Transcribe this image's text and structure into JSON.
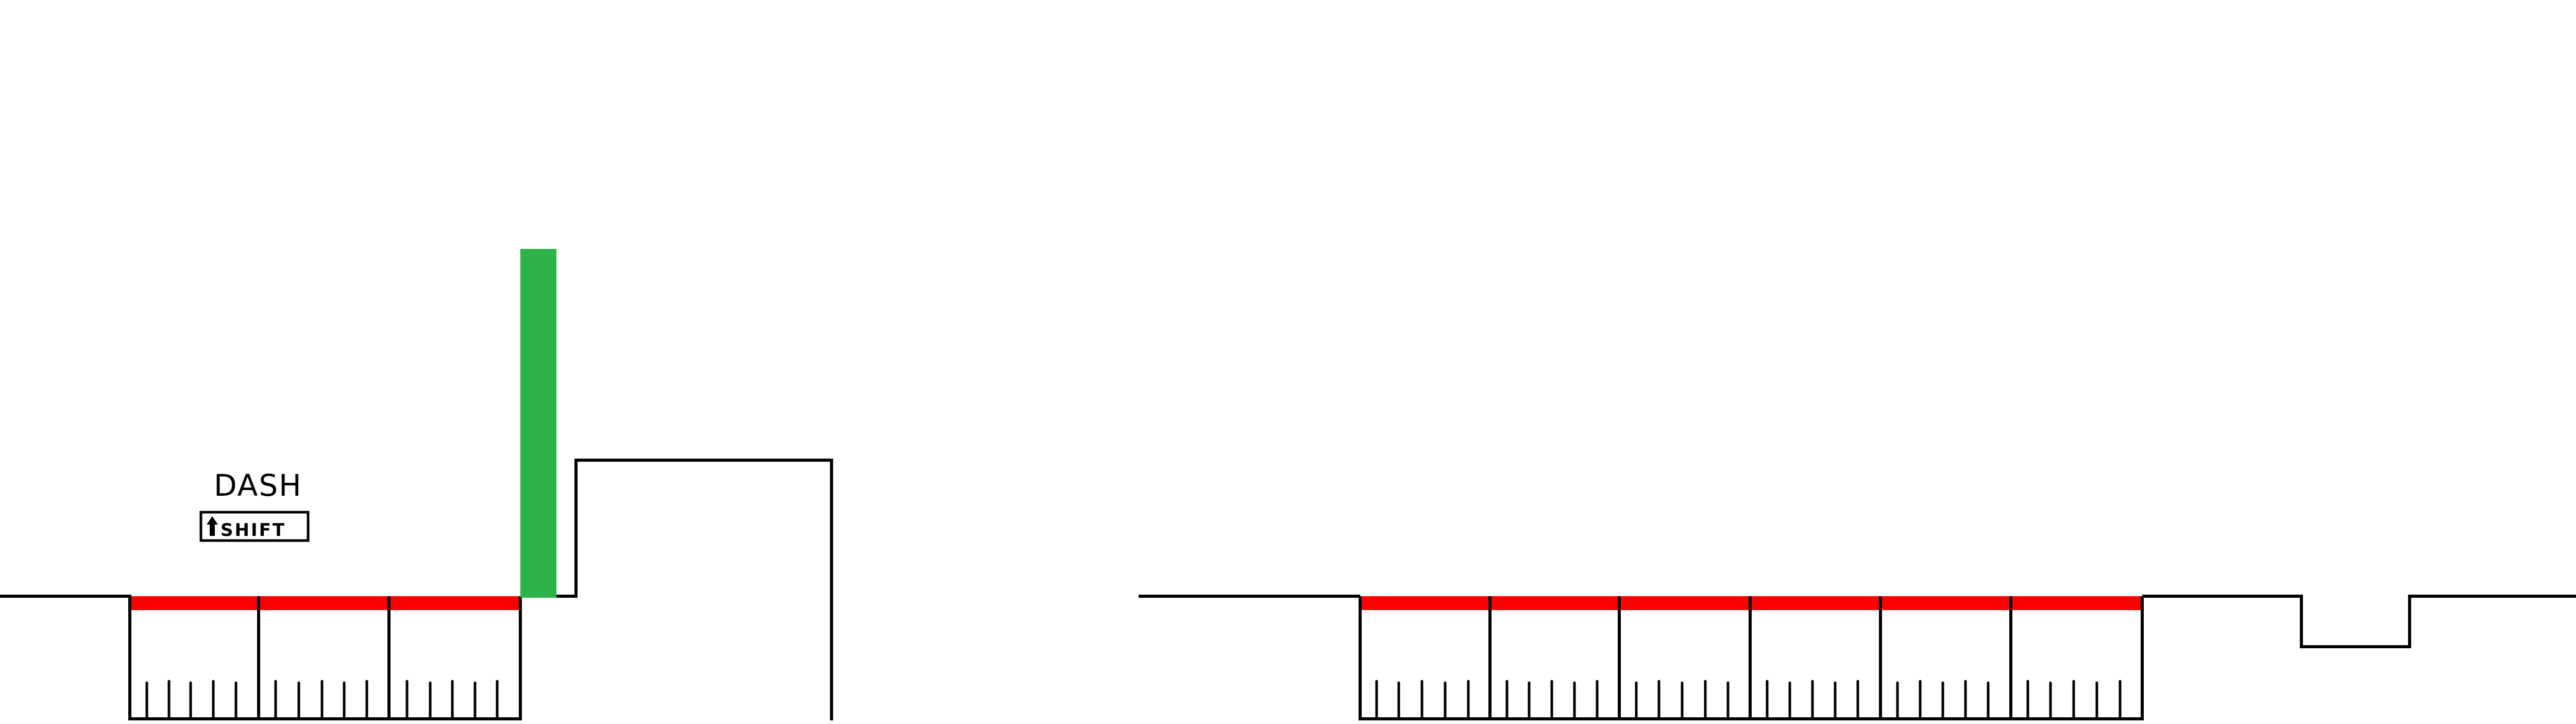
{
  "tutorial": {
    "action_label": "DASH",
    "key_label": "SHIFT",
    "key_icon": "shift-arrow-icon"
  },
  "colors": {
    "background": "#ffffff",
    "ink": "#000000",
    "hazard": "#ff0000",
    "checkpoint": "#2db34a"
  },
  "level": {
    "spike_pits_left_count": 3,
    "spike_pits_right_count": 6
  }
}
